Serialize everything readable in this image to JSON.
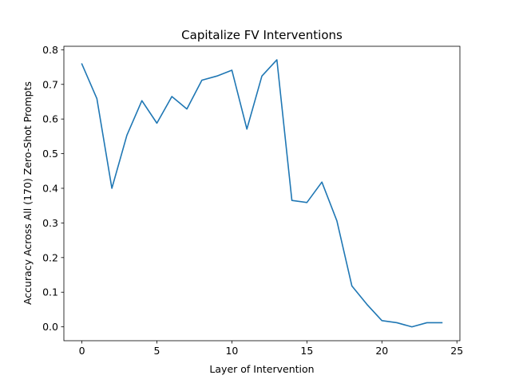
{
  "chart_data": {
    "type": "line",
    "title": "Capitalize FV Interventions",
    "xlabel": "Layer of Intervention",
    "ylabel": "Accuracy Across All (170) Zero-Shot Prompts",
    "xlim": [
      -1.2,
      25.2
    ],
    "ylim": [
      -0.04,
      0.81
    ],
    "x_ticks": [
      0,
      5,
      10,
      15,
      20,
      25
    ],
    "x_tick_labels": [
      "0",
      "5",
      "10",
      "15",
      "20",
      "25"
    ],
    "y_ticks": [
      0.0,
      0.1,
      0.2,
      0.3,
      0.4,
      0.5,
      0.6,
      0.7,
      0.8
    ],
    "y_tick_labels": [
      "0.0",
      "0.1",
      "0.2",
      "0.3",
      "0.4",
      "0.5",
      "0.6",
      "0.7",
      "0.8"
    ],
    "grid": false,
    "legend": "none",
    "series": [
      {
        "color": "#1f77b4",
        "x": [
          0,
          1,
          2,
          3,
          4,
          5,
          6,
          7,
          8,
          9,
          10,
          11,
          12,
          13,
          14,
          15,
          16,
          17,
          18,
          19,
          20,
          21,
          22,
          23,
          24
        ],
        "values": [
          0.759,
          0.659,
          0.4,
          0.553,
          0.653,
          0.588,
          0.665,
          0.629,
          0.712,
          0.724,
          0.741,
          0.571,
          0.724,
          0.771,
          0.365,
          0.359,
          0.418,
          0.306,
          0.118,
          0.065,
          0.018,
          0.012,
          0.0,
          0.012,
          0.012
        ]
      }
    ]
  }
}
